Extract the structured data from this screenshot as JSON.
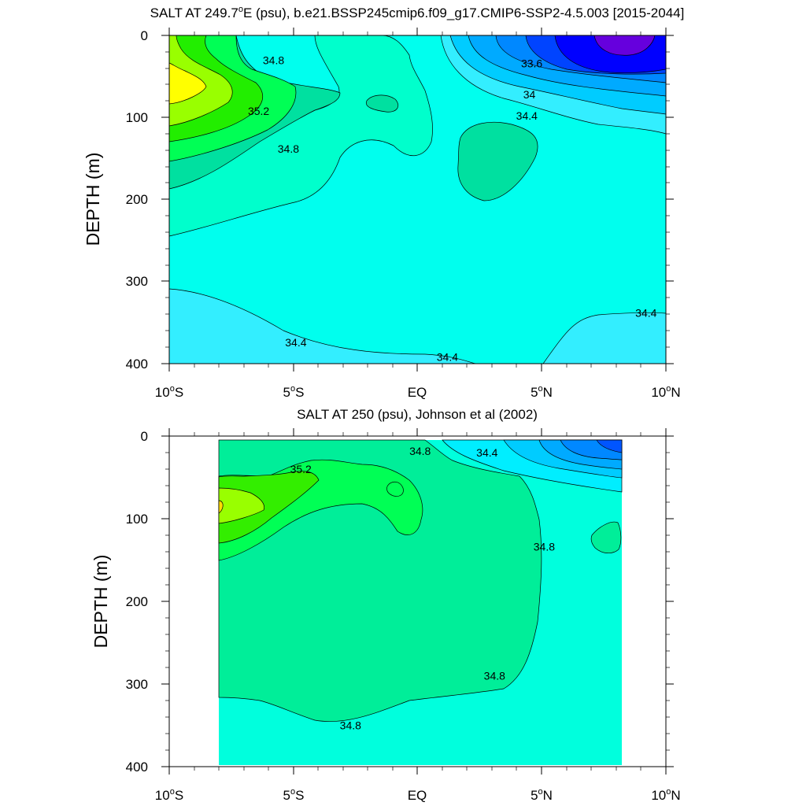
{
  "chart_data": [
    {
      "type": "contour",
      "title_pre": "SALT AT 249.7",
      "title_degree": "o",
      "title_post": "E (psu), b.e21.BSSP245cmip6.f09_g17.CMIP6-SSP2-4.5.003 [2015-2044]",
      "ylabel": "DEPTH (m)",
      "xlabel": "",
      "xlim": [
        -10,
        10
      ],
      "ylim": [
        0,
        400
      ],
      "y_inverted": true,
      "xticks": [
        {
          "value": -10,
          "num": "10",
          "deg": "o",
          "hemi": "S"
        },
        {
          "value": -5,
          "num": "5",
          "deg": "o",
          "hemi": "S"
        },
        {
          "value": 0,
          "num": "EQ",
          "deg": "",
          "hemi": ""
        },
        {
          "value": 5,
          "num": "5",
          "deg": "o",
          "hemi": "N"
        },
        {
          "value": 10,
          "num": "10",
          "deg": "o",
          "hemi": "N"
        }
      ],
      "yticks": [
        0,
        100,
        200,
        300,
        400
      ],
      "contour_labels": [
        {
          "text": "34.8",
          "x": -5.8,
          "y": 30
        },
        {
          "text": "35.2",
          "x": -6.4,
          "y": 92
        },
        {
          "text": "34.8",
          "x": -5.2,
          "y": 138
        },
        {
          "text": "33.6",
          "x": 4.6,
          "y": 34
        },
        {
          "text": "34",
          "x": 4.5,
          "y": 72
        },
        {
          "text": "34.4",
          "x": 4.4,
          "y": 98
        },
        {
          "text": "34.4",
          "x": 9.2,
          "y": 338
        },
        {
          "text": "34.4",
          "x": -4.9,
          "y": 374
        },
        {
          "text": "34.4",
          "x": 1.2,
          "y": 392
        }
      ],
      "levels": [
        {
          "value": 34.8,
          "color": "#00ffcc"
        },
        {
          "value": 35.2,
          "color": "#00e0a0"
        },
        {
          "value": 35.4,
          "color": "#00ff55"
        },
        {
          "value": 35.6,
          "color": "#33ee00"
        },
        {
          "value": 35.8,
          "color": "#99ff00"
        },
        {
          "value": 36.0,
          "color": "#ffff00"
        }
      ]
    },
    {
      "type": "contour",
      "title": "SALT AT 250 (psu), Johnson et al (2002)",
      "ylabel": "DEPTH (m)",
      "xlabel": "",
      "xlim": [
        -10,
        10
      ],
      "ylim": [
        0,
        400
      ],
      "y_inverted": true,
      "data_lon_range": [
        -8,
        8.2
      ],
      "xticks": [
        {
          "value": -10,
          "num": "10",
          "deg": "o",
          "hemi": "S"
        },
        {
          "value": -5,
          "num": "5",
          "deg": "o",
          "hemi": "S"
        },
        {
          "value": 0,
          "num": "EQ",
          "deg": "",
          "hemi": ""
        },
        {
          "value": 5,
          "num": "5",
          "deg": "o",
          "hemi": "N"
        },
        {
          "value": 10,
          "num": "10",
          "deg": "o",
          "hemi": "N"
        }
      ],
      "yticks": [
        0,
        100,
        200,
        300,
        400
      ],
      "contour_labels": [
        {
          "text": "35.2",
          "x": -4.7,
          "y": 40
        },
        {
          "text": "34.8",
          "x": 0.1,
          "y": 18
        },
        {
          "text": "34.4",
          "x": 2.8,
          "y": 20
        },
        {
          "text": "34.8",
          "x": 5.1,
          "y": 134
        },
        {
          "text": "34.8",
          "x": 3.1,
          "y": 290
        },
        {
          "text": "34.8",
          "x": -2.7,
          "y": 350
        }
      ],
      "levels": [
        {
          "value": 34.8,
          "color": "#00ffdd"
        },
        {
          "value": 35.0,
          "color": "#00ee99"
        },
        {
          "value": 35.2,
          "color": "#00ff55"
        },
        {
          "value": 35.4,
          "color": "#33ee00"
        },
        {
          "value": 35.6,
          "color": "#99ff00"
        }
      ]
    }
  ]
}
